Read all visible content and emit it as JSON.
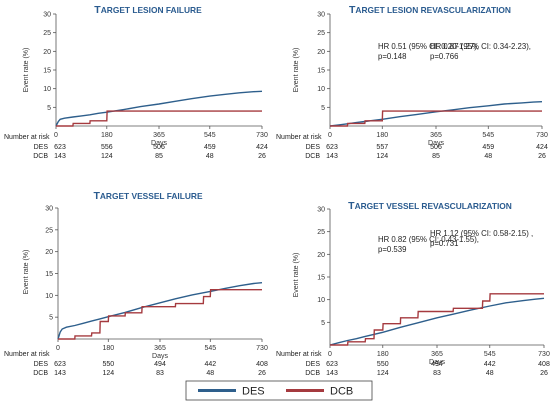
{
  "shared": {
    "y_axis_label": "Event rate (%)",
    "x_axis_label": "Days",
    "risk_header": "Number at risk",
    "legend": [
      {
        "name": "DES",
        "color": "#2e5f8c"
      },
      {
        "name": "DCB",
        "color": "#a53a3f"
      }
    ]
  },
  "chart_data": [
    {
      "type": "line",
      "title_cap": "T",
      "title_rest": "ARGET LESION FAILURE",
      "hr_line1": "HR 0.51 (95% CI: 0.20-1.27),",
      "hr_line2": "p=0.148",
      "xlabel": "Days",
      "ylabel": "Event rate (%)",
      "xlim": [
        0,
        730
      ],
      "ylim": [
        0,
        30
      ],
      "x_ticks": [
        0,
        180,
        365,
        545,
        730
      ],
      "y_ticks": [
        5,
        10,
        15,
        20,
        25,
        30
      ],
      "series": [
        {
          "name": "DES",
          "color": "#2e5f8c",
          "x": [
            0,
            8,
            15,
            30,
            60,
            90,
            120,
            150,
            180,
            240,
            300,
            365,
            420,
            480,
            545,
            600,
            650,
            700,
            730
          ],
          "y": [
            0,
            1.2,
            1.8,
            2.1,
            2.4,
            2.7,
            3.0,
            3.4,
            3.7,
            4.4,
            5.2,
            5.9,
            6.6,
            7.3,
            8.0,
            8.5,
            8.9,
            9.2,
            9.3
          ]
        },
        {
          "name": "DCB",
          "color": "#a53a3f",
          "x": [
            0,
            60,
            61,
            120,
            121,
            180,
            181,
            730
          ],
          "y": [
            0,
            0,
            0.7,
            0.7,
            1.4,
            1.4,
            4.0,
            4.0
          ]
        }
      ],
      "at_risk": {
        "DES": [
          "623",
          "556",
          "506",
          "459",
          "424"
        ],
        "DCB": [
          "143",
          "124",
          "85",
          "48",
          "26"
        ]
      }
    },
    {
      "type": "line",
      "title_cap": "T",
      "title_rest": "ARGET LESION REVASCULARIZATION",
      "hr_line1": "HR 0.87 (95% CI: 0.34-2.23),",
      "hr_line2": "p=0.766",
      "xlabel": "Days",
      "ylabel": "Event rate (%)",
      "xlim": [
        0,
        730
      ],
      "ylim": [
        0,
        30
      ],
      "x_ticks": [
        0,
        180,
        365,
        545,
        730
      ],
      "y_ticks": [
        5,
        10,
        15,
        20,
        25,
        30
      ],
      "series": [
        {
          "name": "DES",
          "color": "#2e5f8c",
          "x": [
            0,
            30,
            60,
            90,
            120,
            180,
            240,
            300,
            365,
            420,
            480,
            545,
            600,
            660,
            700,
            730
          ],
          "y": [
            0,
            0.3,
            0.6,
            0.9,
            1.2,
            1.8,
            2.5,
            3.1,
            3.8,
            4.3,
            4.9,
            5.4,
            5.9,
            6.2,
            6.4,
            6.5
          ]
        },
        {
          "name": "DCB",
          "color": "#a53a3f",
          "x": [
            0,
            60,
            61,
            120,
            121,
            180,
            181,
            730
          ],
          "y": [
            0,
            0,
            0.7,
            0.7,
            1.4,
            1.4,
            4.0,
            4.0
          ]
        }
      ],
      "at_risk": {
        "DES": [
          "623",
          "557",
          "506",
          "459",
          "424"
        ],
        "DCB": [
          "143",
          "124",
          "85",
          "48",
          "26"
        ]
      }
    },
    {
      "type": "line",
      "title_cap": "T",
      "title_rest": "ARGET VESSEL FAILURE",
      "hr_line1": "HR 0.82 (95% CI: 0.43-1.55),",
      "hr_line2": "p=0.539",
      "xlabel": "Days",
      "ylabel": "Event rate (%)",
      "xlim": [
        0,
        730
      ],
      "ylim": [
        0,
        30
      ],
      "x_ticks": [
        0,
        180,
        365,
        545,
        730
      ],
      "y_ticks": [
        5,
        10,
        15,
        20,
        25,
        30
      ],
      "series": [
        {
          "name": "DES",
          "color": "#2e5f8c",
          "x": [
            0,
            8,
            15,
            30,
            60,
            90,
            120,
            150,
            180,
            240,
            300,
            365,
            420,
            480,
            545,
            600,
            650,
            700,
            730
          ],
          "y": [
            0,
            1.6,
            2.3,
            2.7,
            3.1,
            3.6,
            4.1,
            4.6,
            5.1,
            6.1,
            7.2,
            8.3,
            9.2,
            10.1,
            10.9,
            11.6,
            12.2,
            12.7,
            12.9
          ]
        },
        {
          "name": "DCB",
          "color": "#a53a3f",
          "x": [
            0,
            60,
            61,
            120,
            121,
            150,
            151,
            180,
            181,
            240,
            241,
            300,
            301,
            420,
            421,
            520,
            521,
            545,
            546,
            730
          ],
          "y": [
            0,
            0,
            0.7,
            0.7,
            1.4,
            1.4,
            4.0,
            4.0,
            5.3,
            5.3,
            6.0,
            6.0,
            7.4,
            7.4,
            8.1,
            8.1,
            9.7,
            9.7,
            11.3,
            11.3
          ]
        }
      ],
      "at_risk": {
        "DES": [
          "623",
          "550",
          "494",
          "442",
          "408"
        ],
        "DCB": [
          "143",
          "124",
          "83",
          "48",
          "26"
        ]
      }
    },
    {
      "type": "line",
      "title_cap": "T",
      "title_rest": "ARGET VESSEL REVASCULARIZATION",
      "hr_line1": "HR 1.12 (95% CI: 0.58-2.15) ,",
      "hr_line2": "p=0.731",
      "xlabel": "Days",
      "ylabel": "Event rate (%)",
      "xlim": [
        0,
        730
      ],
      "ylim": [
        0,
        30
      ],
      "x_ticks": [
        0,
        180,
        365,
        545,
        730
      ],
      "y_ticks": [
        5,
        10,
        15,
        20,
        25,
        30
      ],
      "series": [
        {
          "name": "DES",
          "color": "#2e5f8c",
          "x": [
            0,
            30,
            60,
            90,
            120,
            180,
            240,
            300,
            365,
            420,
            480,
            545,
            600,
            660,
            700,
            730
          ],
          "y": [
            0,
            0.5,
            1.0,
            1.4,
            1.9,
            2.8,
            3.9,
            4.9,
            6.0,
            6.8,
            7.7,
            8.6,
            9.3,
            9.8,
            10.1,
            10.3
          ]
        },
        {
          "name": "DCB",
          "color": "#a53a3f",
          "x": [
            0,
            60,
            61,
            120,
            121,
            150,
            151,
            180,
            181,
            240,
            241,
            300,
            301,
            420,
            421,
            520,
            521,
            545,
            546,
            730
          ],
          "y": [
            0,
            0,
            0.7,
            0.7,
            1.4,
            1.4,
            3.3,
            3.3,
            4.7,
            4.7,
            6.0,
            6.0,
            7.4,
            7.4,
            8.1,
            8.1,
            9.7,
            9.7,
            11.3,
            11.3
          ]
        }
      ],
      "at_risk": {
        "DES": [
          "623",
          "550",
          "494",
          "442",
          "408"
        ],
        "DCB": [
          "143",
          "124",
          "83",
          "48",
          "26"
        ]
      }
    }
  ]
}
